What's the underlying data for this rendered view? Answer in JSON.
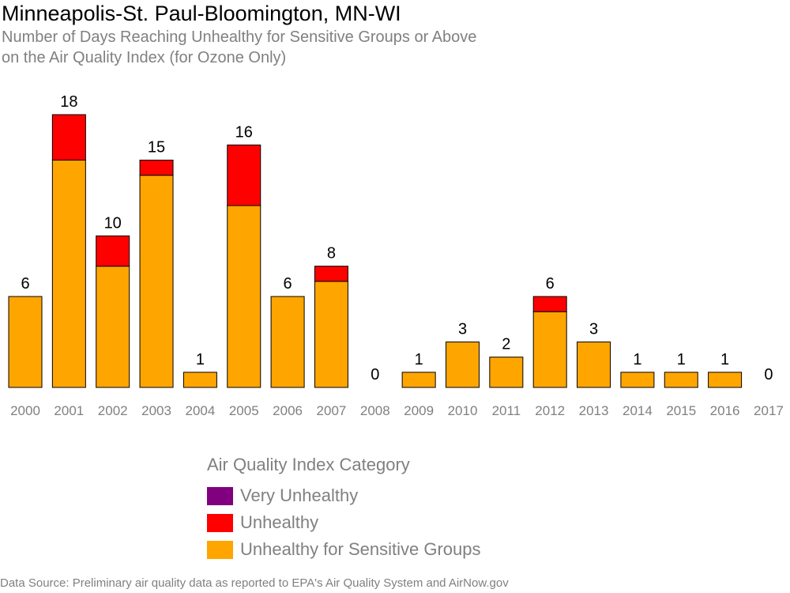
{
  "title": "Minneapolis-St. Paul-Bloomington, MN-WI",
  "subtitle_line1": "Number of Days Reaching Unhealthy for Sensitive Groups or Above",
  "subtitle_line2": "on the Air Quality Index (for Ozone Only)",
  "source": "Data Source: Preliminary air quality data as reported to EPA's Air Quality System and AirNow.gov",
  "legend": {
    "title": "Air Quality Index Category",
    "items": [
      {
        "label": "Very Unhealthy",
        "color": "#800080"
      },
      {
        "label": "Unhealthy",
        "color": "#ff0000"
      },
      {
        "label": "Unhealthy for Sensitive Groups",
        "color": "#ffa500"
      }
    ]
  },
  "chart_data": {
    "type": "bar",
    "stacked": true,
    "categories": [
      "2000",
      "2001",
      "2002",
      "2003",
      "2004",
      "2005",
      "2006",
      "2007",
      "2008",
      "2009",
      "2010",
      "2011",
      "2012",
      "2013",
      "2014",
      "2015",
      "2016",
      "2017"
    ],
    "series": [
      {
        "name": "Unhealthy for Sensitive Groups",
        "color": "#ffa500",
        "values": [
          6,
          15,
          8,
          14,
          1,
          12,
          6,
          7,
          0,
          1,
          3,
          2,
          5,
          3,
          1,
          1,
          1,
          0
        ]
      },
      {
        "name": "Unhealthy",
        "color": "#ff0000",
        "values": [
          0,
          3,
          2,
          1,
          0,
          4,
          0,
          1,
          0,
          0,
          0,
          0,
          1,
          0,
          0,
          0,
          0,
          0
        ]
      },
      {
        "name": "Very Unhealthy",
        "color": "#800080",
        "values": [
          0,
          0,
          0,
          0,
          0,
          0,
          0,
          0,
          0,
          0,
          0,
          0,
          0,
          0,
          0,
          0,
          0,
          0
        ]
      }
    ],
    "totals": [
      6,
      18,
      10,
      15,
      1,
      16,
      6,
      8,
      0,
      1,
      3,
      2,
      6,
      3,
      1,
      1,
      1,
      0
    ],
    "ylim": [
      0,
      18
    ],
    "grid": false,
    "legend_position": "bottom"
  }
}
